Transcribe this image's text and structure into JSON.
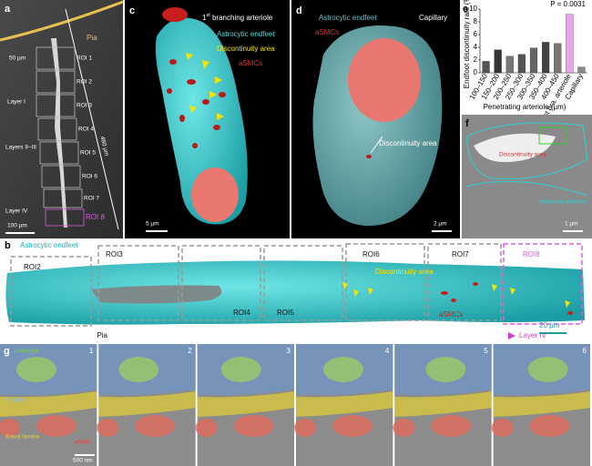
{
  "panel_a": {
    "label": "a",
    "pia": "Pia",
    "scale_small": "50 µm",
    "rois": [
      "ROI 1",
      "ROI 2",
      "ROI 3",
      "ROI 4",
      "ROI 5",
      "ROI 6",
      "ROI 7",
      "ROI 8"
    ],
    "layers": [
      "Layer I",
      "Layers II–III",
      "Layer IV"
    ],
    "depth": "480 µm",
    "scale_bar": "100 µm"
  },
  "panel_c": {
    "label": "c",
    "title_num": "1",
    "title_sup": "st",
    "title_rest": " branching arteriole",
    "legend": [
      "Astrocytic endfeet",
      "Discontinuity area",
      "aSMCs"
    ],
    "scale_bar": "5 µm"
  },
  "panel_d": {
    "label": "d",
    "title": "Capillary",
    "legend": [
      "Astrocytic endfeet",
      "aSMCs"
    ],
    "annotation": "Discontinuity area",
    "scale_bar": "2 µm"
  },
  "panel_e": {
    "label": "e",
    "chart": {
      "type": "bar",
      "ylabel": "Endfoot discontinuity rate (%)",
      "xlabel": "Penetrating arteriole (µm)",
      "categories": [
        "100–150",
        "150–200",
        "200–250",
        "250–300",
        "300–350",
        "350–400",
        "400–450",
        "1st bra. arteriole",
        "Capillary"
      ],
      "values": [
        1.8,
        3.6,
        2.6,
        2.9,
        3.9,
        4.8,
        4.6,
        9.2,
        0.9
      ],
      "colors": [
        "#555555",
        "#333333",
        "#777777",
        "#555555",
        "#666666",
        "#444444",
        "#777777",
        "#e7a6e7",
        "#888888"
      ],
      "ylim": [
        0,
        10
      ],
      "yticks": [
        0,
        2,
        4,
        6,
        8,
        10
      ],
      "annotation": "P = 0.0031"
    }
  },
  "panel_f": {
    "label": "f",
    "annotations": [
      "Discontinuity area",
      "Astrocytic endfeet"
    ],
    "scale_bar": "1 µm"
  },
  "panel_b": {
    "label": "b",
    "legend": "Astrocytic endfeet",
    "rois": [
      "ROI2",
      "ROI3",
      "ROI4",
      "ROI5",
      "ROI6",
      "ROI7",
      "ROI8"
    ],
    "annotations": [
      "Discontinuity area",
      "aSMCs"
    ],
    "scale_bar": "20 µm",
    "axis_start": "Pia",
    "axis_end": "Layer IV"
  },
  "panel_g": {
    "label": "g",
    "frames": [
      1,
      2,
      3,
      4,
      5,
      6
    ],
    "labels": [
      "Astrocyte",
      "Endfoot",
      "Basal lamina",
      "aSMC"
    ],
    "scale_bar": "500 nm"
  }
}
